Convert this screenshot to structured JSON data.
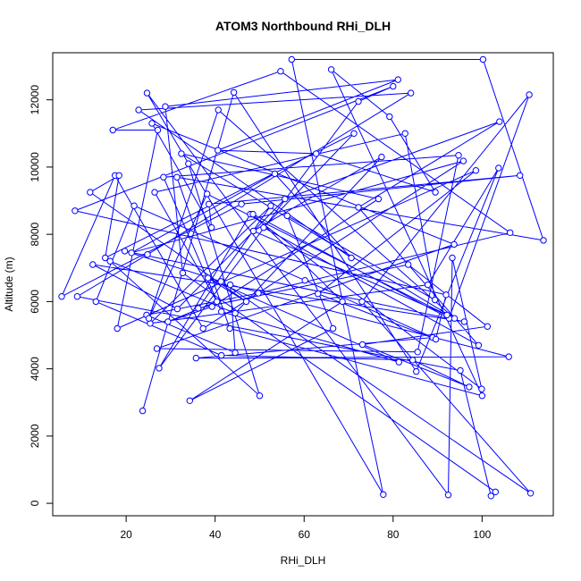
{
  "chart_data": {
    "type": "line",
    "title": "ATOM3 Northbound RHi_DLH",
    "xlabel": "RHi_DLH",
    "ylabel": "Altitude (m)",
    "xlim": [
      3.5,
      116
    ],
    "ylim": [
      -370,
      13400
    ],
    "xticks": [
      20,
      40,
      60,
      80,
      100
    ],
    "yticks": [
      0,
      2000,
      4000,
      6000,
      8000,
      10000,
      12000
    ],
    "xtick_labels": [
      "20",
      "40",
      "60",
      "80",
      "100"
    ],
    "ytick_labels": [
      "0",
      "2000",
      "4000",
      "6000",
      "8000",
      "10000",
      "12000"
    ],
    "grid": false,
    "legend": "none",
    "color": "#0000ff",
    "markers": "open-circle",
    "series": [
      {
        "x": [
          23.7,
          44.2,
          85.2,
          103.7,
          87.8,
          25.4,
          52.5,
          36.2,
          83.4,
          101.2,
          73.1,
          97.1,
          84.4,
          41.4,
          13.2,
          21.8,
          60.2,
          88.9,
          35.7,
          106.0,
          43.4,
          44.5,
          24.6,
          49.7,
          106.3,
          54.7,
          17.0,
          27.1,
          18.0,
          98.6,
          63.1,
          89.6,
          91.9,
          8.5,
          80.0,
          72.2,
          27.4,
          47.9,
          99.9,
          93.3,
          92.4,
          24.7,
          77.8,
          57.2,
          100.2,
          113.8,
          31.4,
          43.3,
          100.0,
          66.1,
          79.2,
          89.5,
          62.7,
          40.6,
          81.1,
          28.8,
          32.7,
          103.0,
          102.0,
          95.1,
          9.0,
          24.8,
          84.0,
          22.8,
          70.6,
          53.4,
          21.2,
          95.8,
          37.3,
          17.5,
          5.5,
          45.9,
          108.5,
          38.6,
          39.2,
          25.8,
          93.7,
          26.9,
          85.5,
          94.7,
          28.4,
          41.4,
          81.3,
          38.4,
          47.0,
          11.9,
          18.4,
          15.3,
          71.2,
          50.9,
          99.2,
          72.2,
          103.9,
          55.7,
          31.5,
          12.5,
          96.0,
          19.7,
          41.3,
          110.9,
          73.0,
          110.6,
          92.6,
          48.5,
          68.6,
          34.3,
          66.5,
          56.2,
          89.4,
          82.7,
          26.4,
          40.4,
          29.4,
          39.3,
          76.7,
          32.4,
          93.8,
          40.7,
          25.1,
          38.2,
          92.1,
          48.6,
          77.4,
          44.5,
          16.4,
          50.0,
          34.0
        ],
        "y": [
          2750,
          12220,
          3920,
          9970,
          6500,
          5350,
          8850,
          5800,
          7100,
          5260,
          4720,
          3460,
          4260,
          4400,
          6000,
          8850,
          6630,
          4930,
          4320,
          4360,
          6500,
          4480,
          5600,
          6250,
          8050,
          12850,
          11100,
          11100,
          5200,
          9900,
          6230,
          4880,
          6200,
          8700,
          12400,
          11950,
          4020,
          8600,
          3400,
          7300,
          250,
          12200,
          260,
          13200,
          13200,
          7820,
          9700,
          5200,
          3200,
          12900,
          11500,
          9250,
          10400,
          10500,
          12600,
          11800,
          6850,
          340,
          220,
          3950,
          6150,
          7400,
          12200,
          11700,
          7300,
          9800,
          7450,
          10180,
          5200,
          9750,
          6150,
          8900,
          9750,
          8900,
          8200,
          11300,
          7700,
          4600,
          4500,
          10350,
          9700,
          5700,
          4200,
          6700,
          6000,
          9250,
          9750,
          7300,
          11000,
          8200,
          4700,
          8800,
          11350,
          9050,
          5780,
          7100,
          5400,
          7500,
          6600,
          300,
          6000,
          12150,
          5500,
          8600,
          6000,
          3050,
          5200,
          8550,
          6050,
          11000,
          9250,
          6000,
          5400,
          5850,
          9050,
          10400,
          5500,
          11700,
          5500,
          9200,
          5600,
          8100,
          10300,
          5650,
          7200,
          3200,
          10100
        ]
      }
    ]
  }
}
